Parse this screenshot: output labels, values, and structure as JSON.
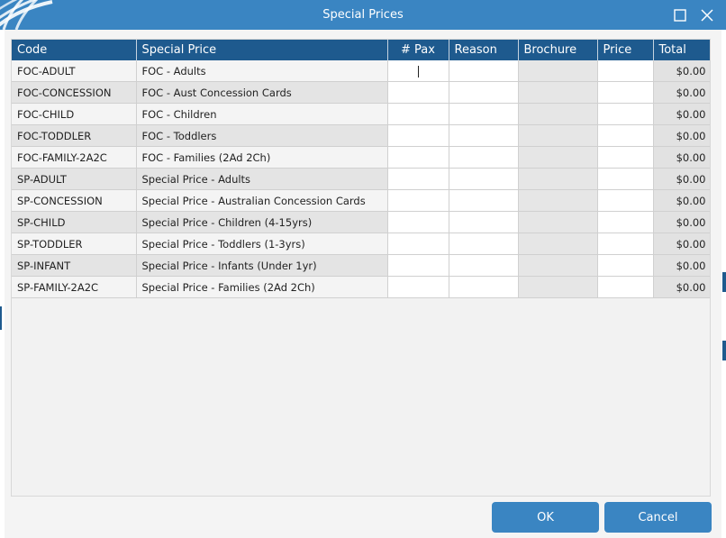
{
  "window": {
    "title": "Special Prices"
  },
  "table": {
    "headers": {
      "code": "Code",
      "special_price": "Special Price",
      "pax": "# Pax",
      "reason": "Reason",
      "brochure": "Brochure",
      "price": "Price",
      "total": "Total"
    },
    "rows": [
      {
        "code": "FOC-ADULT",
        "special_price": "FOC - Adults",
        "pax": "",
        "reason": "",
        "brochure": "",
        "price": "",
        "total": "$0.00"
      },
      {
        "code": "FOC-CONCESSION",
        "special_price": "FOC - Aust Concession Cards",
        "pax": "",
        "reason": "",
        "brochure": "",
        "price": "",
        "total": "$0.00"
      },
      {
        "code": "FOC-CHILD",
        "special_price": "FOC - Children",
        "pax": "",
        "reason": "",
        "brochure": "",
        "price": "",
        "total": "$0.00"
      },
      {
        "code": "FOC-TODDLER",
        "special_price": "FOC - Toddlers",
        "pax": "",
        "reason": "",
        "brochure": "",
        "price": "",
        "total": "$0.00"
      },
      {
        "code": "FOC-FAMILY-2A2C",
        "special_price": "FOC - Families (2Ad 2Ch)",
        "pax": "",
        "reason": "",
        "brochure": "",
        "price": "",
        "total": "$0.00"
      },
      {
        "code": "SP-ADULT",
        "special_price": "Special Price - Adults",
        "pax": "",
        "reason": "",
        "brochure": "",
        "price": "",
        "total": "$0.00"
      },
      {
        "code": "SP-CONCESSION",
        "special_price": "Special Price - Australian Concession Cards",
        "pax": "",
        "reason": "",
        "brochure": "",
        "price": "",
        "total": "$0.00"
      },
      {
        "code": "SP-CHILD",
        "special_price": "Special Price - Children (4-15yrs)",
        "pax": "",
        "reason": "",
        "brochure": "",
        "price": "",
        "total": "$0.00"
      },
      {
        "code": "SP-TODDLER",
        "special_price": "Special Price - Toddlers (1-3yrs)",
        "pax": "",
        "reason": "",
        "brochure": "",
        "price": "",
        "total": "$0.00"
      },
      {
        "code": "SP-INFANT",
        "special_price": "Special Price - Infants (Under 1yr)",
        "pax": "",
        "reason": "",
        "brochure": "",
        "price": "",
        "total": "$0.00"
      },
      {
        "code": "SP-FAMILY-2A2C",
        "special_price": "Special Price - Families (2Ad 2Ch)",
        "pax": "",
        "reason": "",
        "brochure": "",
        "price": "",
        "total": "$0.00"
      }
    ]
  },
  "buttons": {
    "ok": "OK",
    "cancel": "Cancel"
  },
  "icons": {
    "logo": "globe-logo-icon",
    "maximize": "maximize-icon",
    "close": "close-icon"
  },
  "colors": {
    "titlebar": "#3a85c2",
    "header": "#1e5a8e",
    "button": "#3a85c2"
  }
}
